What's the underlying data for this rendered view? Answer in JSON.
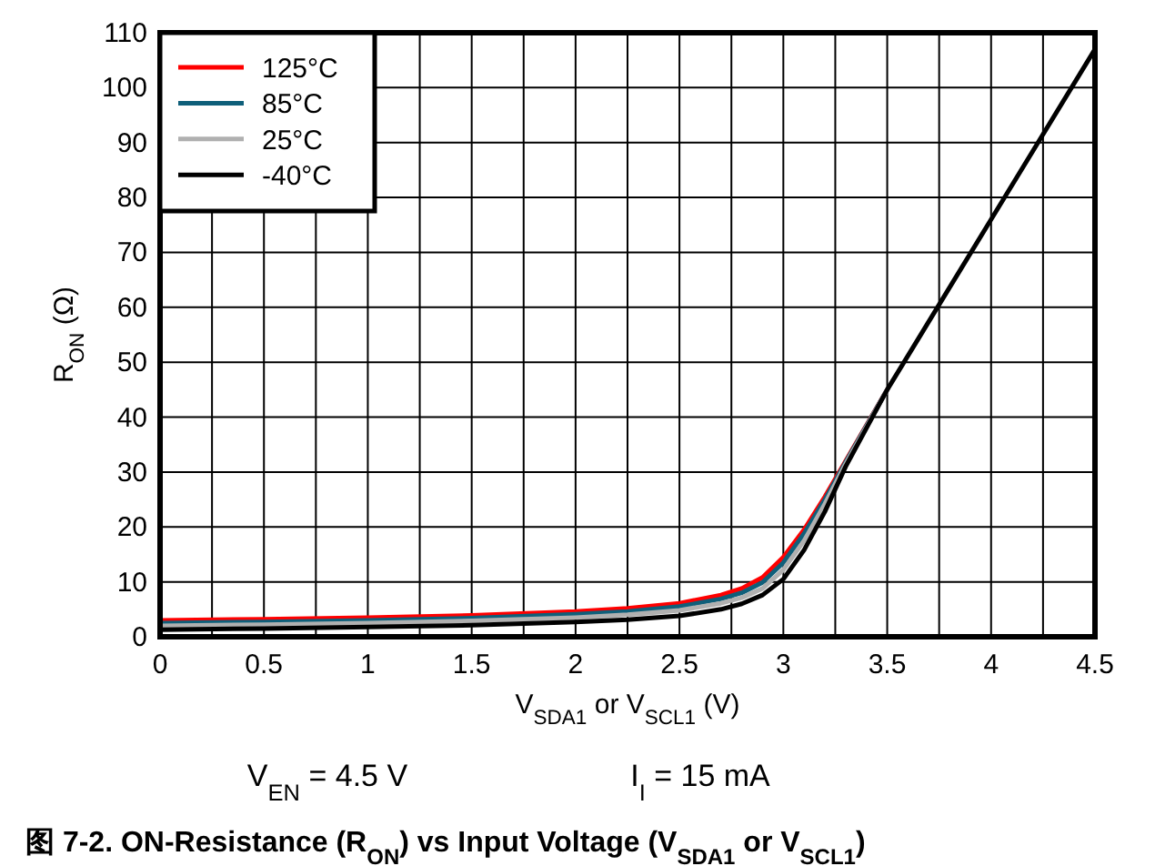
{
  "chart_data": {
    "type": "line",
    "title": "图 7-2. ON-Resistance (R$_{ON}$) vs Input Voltage (V$_{SDA1}$ or V$_{SCL1}$)",
    "xlabel": "V$_{SDA1}$ or V$_{SCL1}$ (V)",
    "ylabel": "R$_{ON}$ (Ω)",
    "annotations": [
      "V$_{EN}$ = 4.5 V",
      "I$_{I}$ = 15 mA"
    ],
    "x": [
      0,
      0.5,
      1,
      1.5,
      2,
      2.25,
      2.5,
      2.7,
      2.8,
      2.9,
      3.0,
      3.1,
      3.2,
      3.3,
      3.5,
      4,
      4.5
    ],
    "series": [
      {
        "name": "125°C",
        "color": "#ff0000",
        "values": [
          3.0,
          3.2,
          3.5,
          3.9,
          4.6,
          5.2,
          6.1,
          7.6,
          8.8,
          10.8,
          14.5,
          19.5,
          25.5,
          32,
          45,
          null,
          null
        ]
      },
      {
        "name": "85°C",
        "color": "#0f5f7a",
        "values": [
          2.5,
          2.7,
          3.0,
          3.4,
          4.1,
          4.6,
          5.5,
          6.9,
          8.0,
          9.9,
          13.5,
          18.8,
          25,
          31.8,
          45,
          null,
          null
        ]
      },
      {
        "name": "25°C",
        "color": "#b0b0b0",
        "values": [
          2.0,
          2.2,
          2.5,
          2.9,
          3.5,
          4.0,
          4.8,
          6.1,
          7.1,
          8.8,
          12.2,
          17.5,
          24.2,
          31.5,
          45,
          null,
          null
        ]
      },
      {
        "name": "-40°C",
        "color": "#000000",
        "values": [
          1.3,
          1.5,
          1.8,
          2.1,
          2.7,
          3.1,
          3.8,
          5.0,
          6.0,
          7.6,
          10.5,
          15.8,
          22.8,
          31,
          45,
          76,
          107
        ]
      }
    ],
    "xlim": [
      0,
      4.5
    ],
    "ylim": [
      0,
      110
    ],
    "xticks": [
      0,
      {
        "value": 0.25,
        "label": null
      },
      0.5,
      {
        "value": 0.75,
        "label": null
      },
      1,
      {
        "value": 1.25,
        "label": null
      },
      1.5,
      {
        "value": 1.75,
        "label": null
      },
      2,
      {
        "value": 2.25,
        "label": null
      },
      2.5,
      {
        "value": 2.75,
        "label": null
      },
      3,
      {
        "value": 3.25,
        "label": null
      },
      3.5,
      {
        "value": 3.75,
        "label": null
      },
      4,
      {
        "value": 4.25,
        "label": null
      },
      4.5
    ],
    "yticks": [
      0,
      10,
      20,
      30,
      40,
      50,
      60,
      70,
      80,
      90,
      100,
      110
    ],
    "grid": true,
    "legend": "top left",
    "marker": "none",
    "line_style": "solid"
  }
}
